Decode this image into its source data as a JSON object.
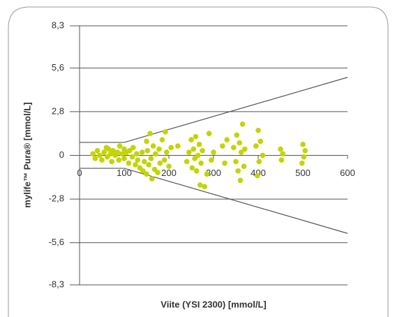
{
  "chart_data": {
    "type": "scatter",
    "x_label": "Viite (YSI 2300) [mmol/L]",
    "y_label": "mylife™ Pura® [mmol/L]",
    "xlim": [
      0,
      600
    ],
    "xticks": [
      0,
      100,
      200,
      300,
      400,
      500,
      600
    ],
    "ylim": [
      -8.3,
      8.3
    ],
    "yticks": [
      {
        "value": -8.3,
        "label": "-8,3"
      },
      {
        "value": -5.6,
        "label": "-5,6"
      },
      {
        "value": -2.8,
        "label": "-2,8"
      },
      0,
      {
        "value": 2.8,
        "label": "2,8"
      },
      {
        "value": 5.6,
        "label": "5,6"
      },
      {
        "value": 8.3,
        "label": "8,3"
      }
    ],
    "grid": true,
    "color": "#c3d400",
    "x": [
      30,
      35,
      40,
      45,
      50,
      55,
      60,
      62,
      65,
      70,
      72,
      75,
      80,
      85,
      88,
      90,
      95,
      100,
      100,
      105,
      110,
      112,
      118,
      120,
      125,
      128,
      130,
      135,
      140,
      142,
      145,
      150,
      150,
      152,
      155,
      158,
      160,
      162,
      165,
      168,
      170,
      175,
      178,
      180,
      185,
      190,
      192,
      195,
      200,
      205,
      220,
      240,
      245,
      250,
      252,
      255,
      258,
      260,
      262,
      265,
      268,
      270,
      272,
      275,
      280,
      285,
      290,
      295,
      300,
      320,
      325,
      330,
      345,
      350,
      352,
      355,
      358,
      360,
      362,
      365,
      368,
      370,
      395,
      398,
      400,
      402,
      405,
      410,
      450,
      452,
      455,
      500,
      502,
      505,
      498
    ],
    "y": [
      0.1,
      -0.2,
      0.3,
      0,
      -0.3,
      0.2,
      0.5,
      -0.1,
      0.4,
      0.1,
      -0.4,
      0.3,
      0,
      0.2,
      -0.3,
      0.6,
      0.1,
      0.4,
      -0.2,
      0.2,
      -0.5,
      0.3,
      -0.1,
      0.5,
      -0.6,
      0.1,
      -0.3,
      -0.8,
      0.2,
      -1.0,
      -0.4,
      0.9,
      -1.2,
      0.3,
      -0.6,
      1.4,
      -0.2,
      -1.5,
      0.6,
      -0.9,
      0.1,
      -1.1,
      0.4,
      -0.5,
      1.0,
      -0.3,
      1.5,
      0.2,
      -0.7,
      0.5,
      0.6,
      -0.4,
      0.2,
      1.0,
      -0.8,
      0.4,
      -0.2,
      1.2,
      -1.0,
      0.0,
      0.7,
      -1.9,
      -0.5,
      0.3,
      -2.0,
      -1.2,
      1.4,
      -0.3,
      0.2,
      0.6,
      -0.5,
      1.0,
      0.5,
      -0.4,
      1.3,
      -1.0,
      0.8,
      -1.6,
      0.2,
      2.0,
      -0.7,
      0.4,
      0.6,
      -1.3,
      1.6,
      -0.4,
      0.9,
      0,
      0.4,
      -0.3,
      0.1,
      0.7,
      -0.1,
      0.3,
      -0.5
    ],
    "reference_lines": [
      {
        "x": [
          0,
          100,
          600
        ],
        "y": [
          0.83,
          0.83,
          5.0
        ]
      },
      {
        "x": [
          0,
          100,
          600
        ],
        "y": [
          -0.83,
          -0.83,
          -5.0
        ]
      }
    ]
  }
}
